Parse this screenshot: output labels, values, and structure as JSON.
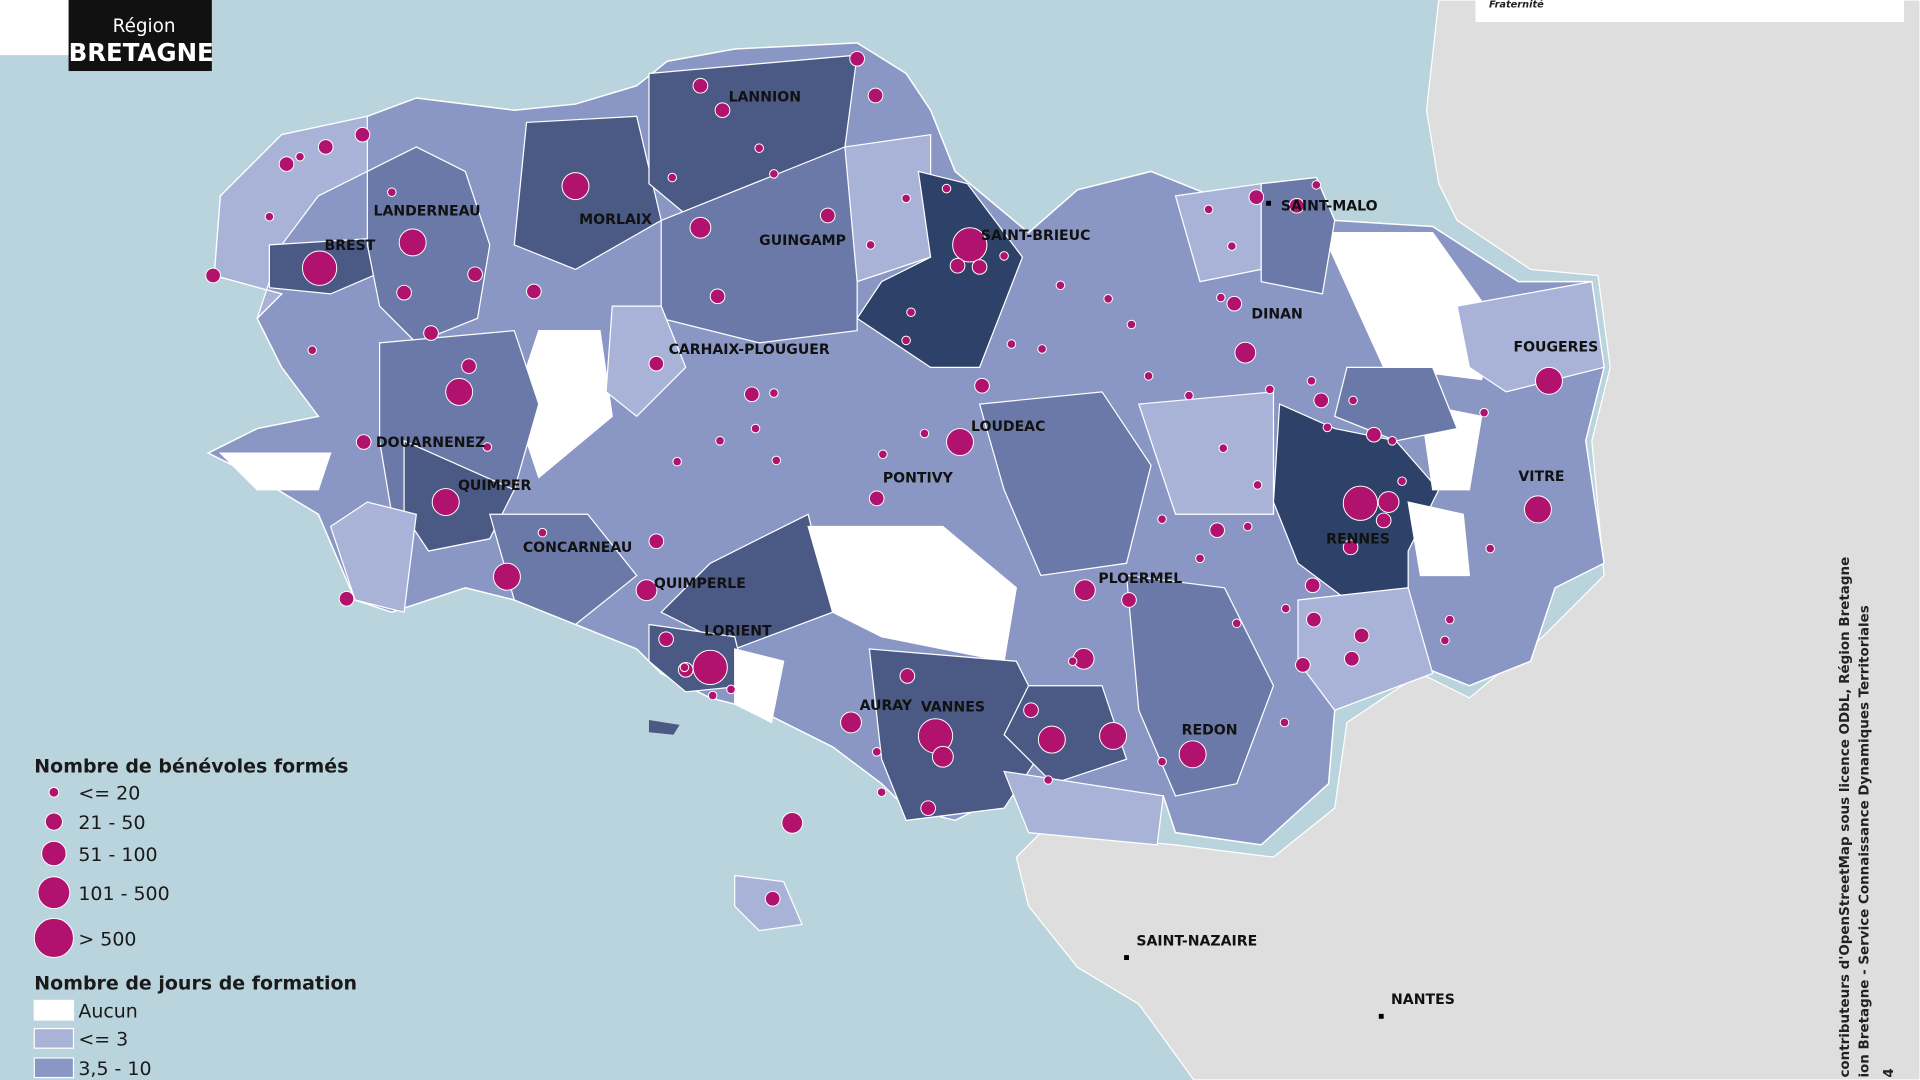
{
  "header": {
    "logo_line1": "Région",
    "logo_line2": "BRETAGNE",
    "motto": "Fraternité"
  },
  "cities": [
    {
      "label": "LANNION"
    },
    {
      "label": "LANDERNEAU"
    },
    {
      "label": "MORLAIX"
    },
    {
      "label": "BREST"
    },
    {
      "label": "GUINGAMP"
    },
    {
      "label": "SAINT-BRIEUC"
    },
    {
      "label": "SAINT-MALO"
    },
    {
      "label": "DINAN"
    },
    {
      "label": "CARHAIX-PLOUGUER"
    },
    {
      "label": "FOUGERES"
    },
    {
      "label": "LOUDEAC"
    },
    {
      "label": "DOUARNENEZ"
    },
    {
      "label": "PONTIVY"
    },
    {
      "label": "QUIMPER"
    },
    {
      "label": "VITRE"
    },
    {
      "label": "RENNES"
    },
    {
      "label": "CONCARNEAU"
    },
    {
      "label": "QUIMPERLE"
    },
    {
      "label": "PLOERMEL"
    },
    {
      "label": "LORIENT"
    },
    {
      "label": "AURAY"
    },
    {
      "label": "VANNES"
    },
    {
      "label": "REDON"
    },
    {
      "label": "SAINT-NAZAIRE"
    },
    {
      "label": "NANTES"
    }
  ],
  "legend": {
    "bubbles_title": "Nombre de bénévoles formés",
    "bubble_classes": [
      "<= 20",
      "21 - 50",
      "51 - 100",
      "101 - 500",
      "> 500"
    ],
    "days_title": "Nombre de jours de formation",
    "day_classes": [
      "Aucun",
      "<= 3",
      "3,5 - 10"
    ]
  },
  "credits": [
    "contributeurs d'OpenStreetMap sous licence ODbL, Région Bretagne",
    "ion Bretagne - Service Connaissance Dynamiques Territoriales",
    "4"
  ]
}
